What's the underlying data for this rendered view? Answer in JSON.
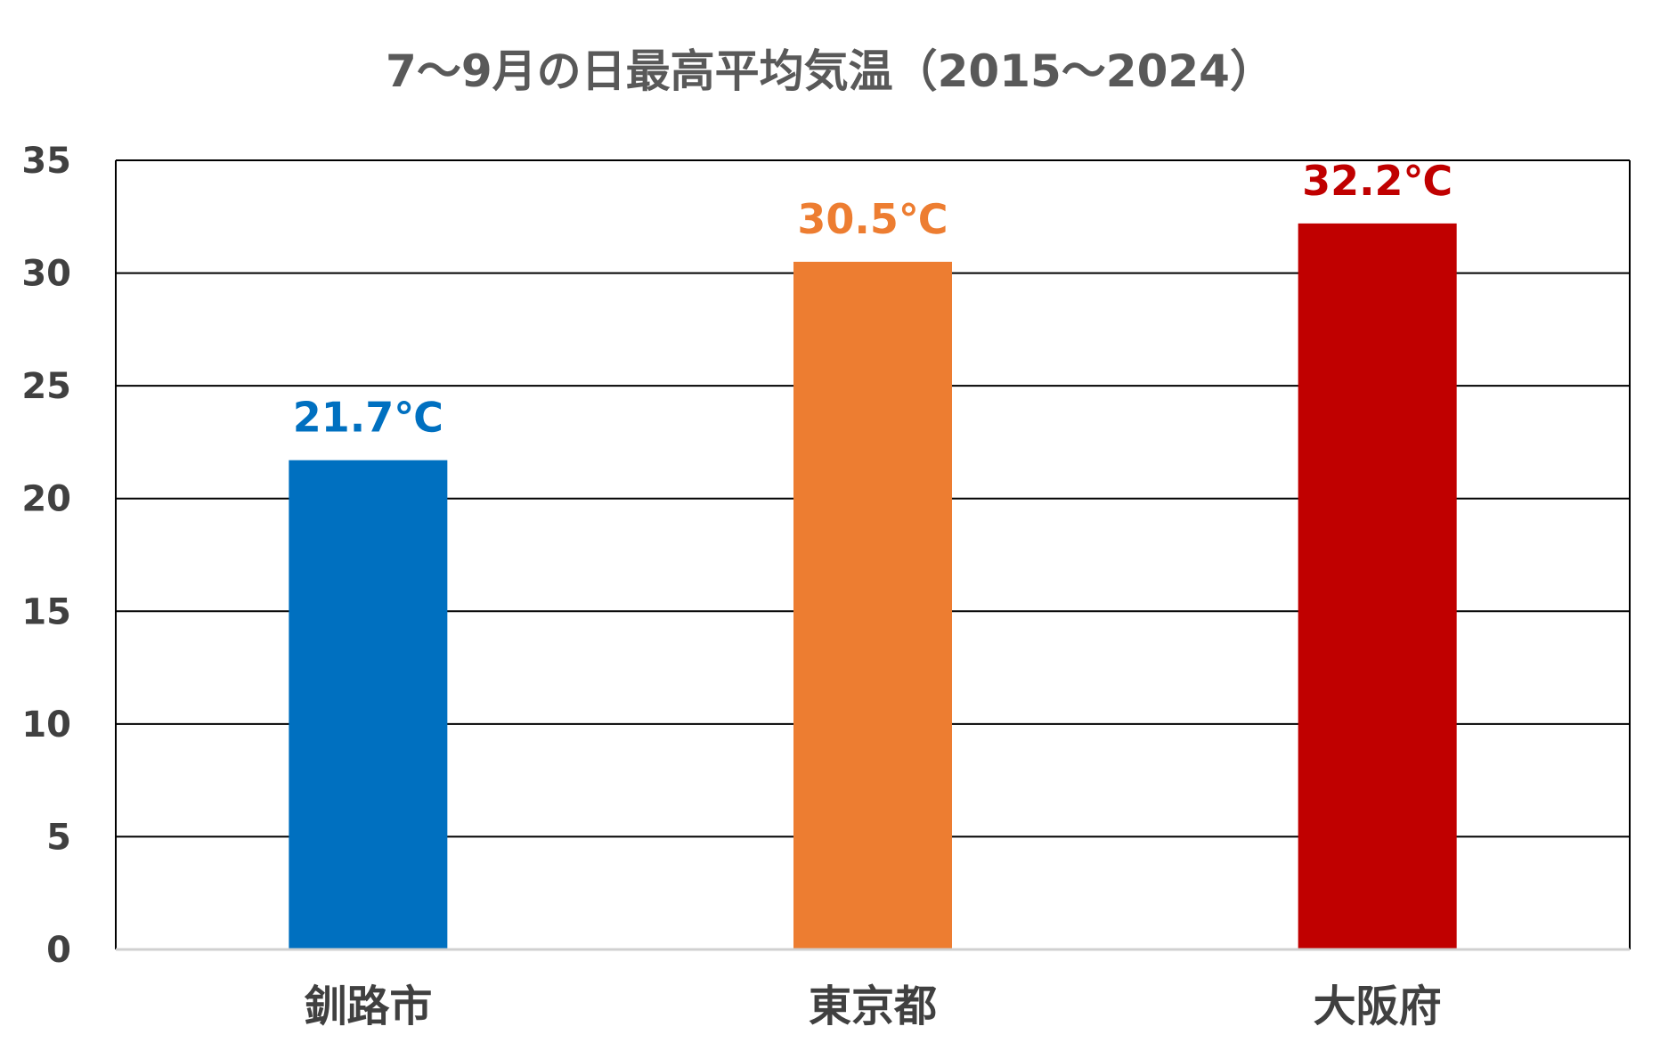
{
  "chart_data": {
    "type": "bar",
    "title": "7～9月の日最高平均気温（2015～2024）",
    "xlabel": "",
    "ylabel": "",
    "categories": [
      "釧路市",
      "東京都",
      "大阪府"
    ],
    "values": [
      21.7,
      30.5,
      32.2
    ],
    "data_labels": [
      "21.7℃",
      "30.5℃",
      "32.2℃"
    ],
    "colors": [
      "#0070C0",
      "#ED7D31",
      "#C00000"
    ],
    "ylim": [
      0,
      35
    ],
    "yticks": [
      0,
      5,
      10,
      15,
      20,
      25,
      30,
      35
    ],
    "grid": true,
    "legend": "none"
  }
}
